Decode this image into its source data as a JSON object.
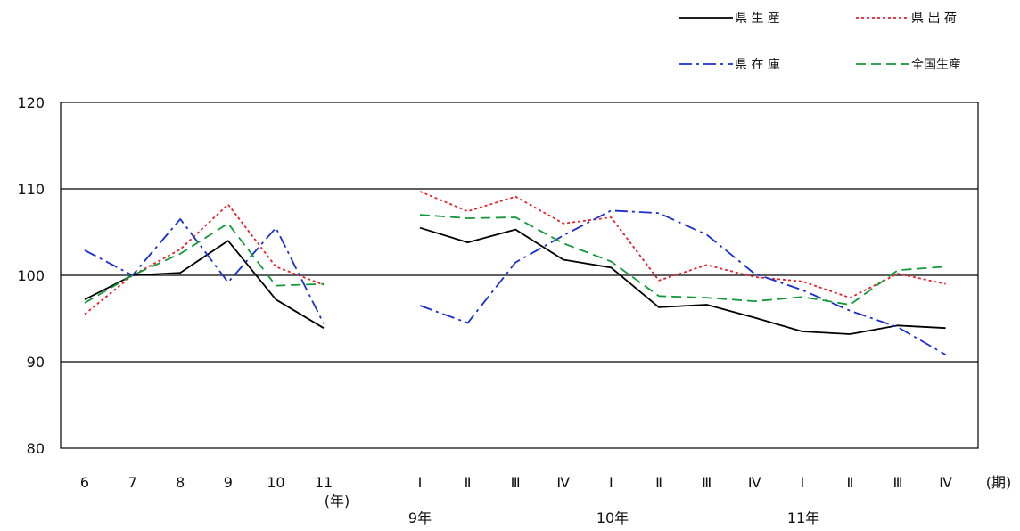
{
  "chart_data": {
    "type": "line",
    "title": "",
    "xlabel": "",
    "ylabel": "",
    "ylim": [
      80,
      120
    ],
    "y_ticks": [
      "80",
      "90",
      "100",
      "110",
      "120"
    ],
    "gridlines_y": [
      90,
      100,
      110
    ],
    "legend_position": "top-right",
    "annual_categories": [
      "6",
      "7",
      "8",
      "9",
      "10",
      "11"
    ],
    "annual_unit_label": "(年)",
    "quarterly_categories": [
      "I",
      "Ⅱ",
      "Ⅲ",
      "Ⅳ",
      "I",
      "Ⅱ",
      "Ⅲ",
      "Ⅳ",
      "I",
      "Ⅱ",
      "Ⅲ",
      "Ⅳ"
    ],
    "quarterly_unit_label": "(期)",
    "year_group_labels": [
      "9年",
      "10年",
      "11年"
    ],
    "series": [
      {
        "name": "県 生 産",
        "color": "#000000",
        "dash": "solid",
        "annual": [
          97.2,
          100.0,
          100.3,
          104.0,
          97.2,
          93.9
        ],
        "quarterly": [
          105.5,
          103.8,
          105.3,
          101.8,
          100.9,
          96.3,
          96.6,
          95.1,
          93.5,
          93.2,
          94.2,
          93.9
        ]
      },
      {
        "name": "県 出 荷",
        "color": "#e8202a",
        "dash": "dotted",
        "annual": [
          95.5,
          100.0,
          103.0,
          108.2,
          101.0,
          98.9
        ],
        "quarterly": [
          109.7,
          107.4,
          109.1,
          106.0,
          106.7,
          99.4,
          101.2,
          99.8,
          99.3,
          97.4,
          100.2,
          99.0
        ]
      },
      {
        "name": "県 在 庫",
        "color": "#1a2fd0",
        "dash": "dashdot",
        "annual": [
          102.9,
          100.0,
          106.5,
          99.2,
          105.5,
          94.4
        ],
        "quarterly": [
          96.5,
          94.5,
          101.5,
          104.6,
          107.5,
          107.2,
          104.7,
          100.2,
          98.3,
          95.9,
          94.0,
          90.8
        ]
      },
      {
        "name": "全国生産",
        "color": "#129a3a",
        "dash": "dashed",
        "annual": [
          96.8,
          100.0,
          102.5,
          106.0,
          98.8,
          99.0
        ],
        "quarterly": [
          107.0,
          106.6,
          106.7,
          103.7,
          101.6,
          97.6,
          97.4,
          97.0,
          97.5,
          96.6,
          100.6,
          101.0
        ]
      }
    ]
  }
}
